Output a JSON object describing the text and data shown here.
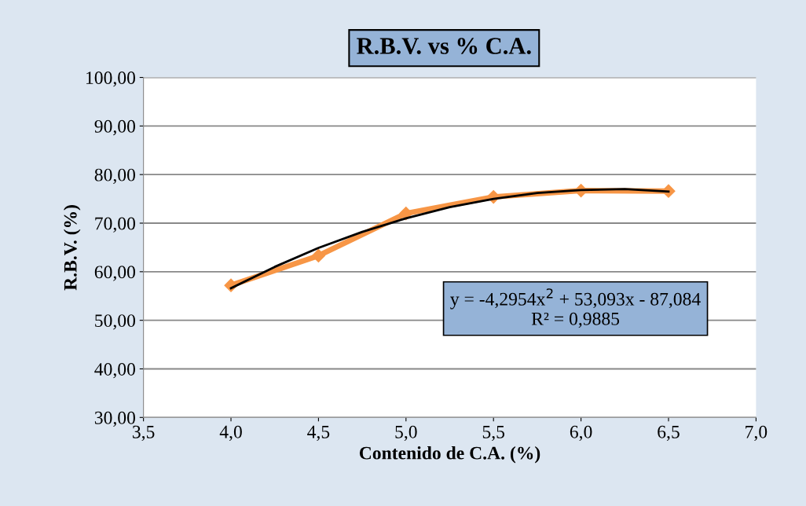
{
  "chart_data": {
    "type": "line",
    "title": "R.B.V. vs % C.A.",
    "xlabel": "Contenido de C.A. (%)",
    "ylabel": "R.B.V. (%)",
    "x": [
      4.0,
      4.5,
      5.0,
      5.5,
      6.0,
      6.5
    ],
    "series": [
      {
        "color": "#f79646",
        "marker": "diamond",
        "values": [
          57.2,
          63.3,
          72.0,
          75.4,
          76.7,
          76.6
        ]
      },
      {
        "type": "line",
        "color": "#000000",
        "marker": "none",
        "x": [
          4.0,
          4.25,
          4.5,
          4.75,
          5.0,
          5.25,
          5.5,
          5.75,
          6.0,
          6.25,
          6.5
        ],
        "values": [
          56.6,
          61.0,
          64.9,
          68.2,
          71.0,
          73.3,
          75.0,
          76.2,
          76.8,
          77.0,
          76.5
        ]
      }
    ],
    "annotations": [
      "y = -4,2954x$^{2}$ + 53,093x - 87,084\nR² = 0,9885"
    ],
    "xlim": [
      3.5,
      7.0
    ],
    "xticks": [
      {
        "value": 3.5,
        "label": "3,5"
      },
      {
        "value": 4.0,
        "label": "4,0"
      },
      {
        "value": 4.5,
        "label": "4,5"
      },
      {
        "value": 5.0,
        "label": "5,0"
      },
      {
        "value": 5.5,
        "label": "5,5"
      },
      {
        "value": 6.0,
        "label": "6,0"
      },
      {
        "value": 6.5,
        "label": "6,5"
      },
      {
        "value": 7.0,
        "label": "7,0"
      }
    ],
    "ylim": [
      30,
      100
    ],
    "yticks": [
      {
        "value": 30,
        "label": "30,00"
      },
      {
        "value": 40,
        "label": "40,00"
      },
      {
        "value": 50,
        "label": "50,00"
      },
      {
        "value": 60,
        "label": "60,00"
      },
      {
        "value": 70,
        "label": "70,00"
      },
      {
        "value": 80,
        "label": "80,00"
      },
      {
        "value": 90,
        "label": "90,00"
      },
      {
        "value": 100,
        "label": "100,00"
      }
    ],
    "grid": "y"
  }
}
